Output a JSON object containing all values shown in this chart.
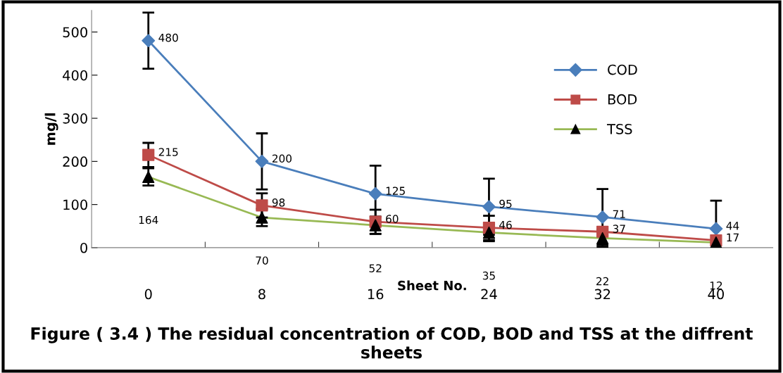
{
  "chart_data": {
    "type": "line",
    "title": "Figure ( 3.4 ) The residual concentration of COD, BOD and TSS at the diffrent sheets",
    "xlabel": "Sheet No.",
    "ylabel": "mg/l",
    "categories": [
      "0",
      "8",
      "16",
      "24",
      "32",
      "40"
    ],
    "series": [
      {
        "name": "COD",
        "color": "#4a7ebb",
        "marker": "diamond",
        "values": [
          480,
          200,
          125,
          95,
          71,
          44
        ],
        "errors": [
          65,
          65,
          65,
          65,
          65,
          65
        ]
      },
      {
        "name": "BOD",
        "color": "#be4b48",
        "marker": "square",
        "values": [
          215,
          98,
          60,
          46,
          37,
          17
        ],
        "errors": [
          28,
          28,
          28,
          28,
          null,
          null
        ]
      },
      {
        "name": "TSS",
        "color": "#98b954",
        "marker": "triangle",
        "values": [
          164,
          70,
          52,
          35,
          22,
          12
        ],
        "errors": [
          20,
          20,
          20,
          20,
          20,
          null
        ]
      }
    ],
    "ylim": [
      0,
      550
    ],
    "yticks": [
      0,
      100,
      200,
      300,
      400,
      500
    ],
    "grid": false,
    "legend": "right",
    "data_labels": true
  }
}
